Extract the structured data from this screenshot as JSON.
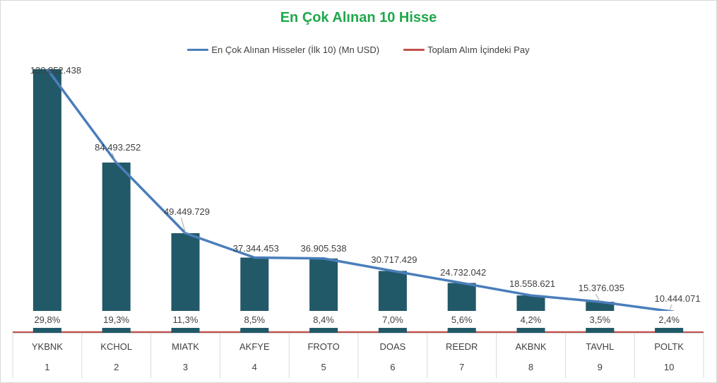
{
  "chart_data": {
    "type": "bar",
    "title": "En Çok Alınan 10 Hisse",
    "categories": [
      "YKBNK",
      "KCHOL",
      "MIATK",
      "AKFYE",
      "FROTO",
      "DOAS",
      "REEDR",
      "AKBNK",
      "TAVHL",
      "POLTK"
    ],
    "ranks": [
      "1",
      "2",
      "3",
      "4",
      "5",
      "6",
      "7",
      "8",
      "9",
      "10"
    ],
    "series": [
      {
        "name": "En Çok Alınan Hisseler (İlk 10) (Mn USD)",
        "type": "bar+line",
        "values": [
          130852438,
          84493252,
          49449729,
          37344453,
          36905538,
          30717429,
          24732042,
          18558621,
          15376035,
          10444071
        ],
        "labels": [
          "130.852.438",
          "84.493.252",
          "49.449.729",
          "37.344.453",
          "36.905.538",
          "30.717.429",
          "24.732.042",
          "18.558.621",
          "15.376.035",
          "10.444.071"
        ],
        "color": "#4a7ebb"
      },
      {
        "name": "Toplam Alım İçindeki Pay",
        "type": "bar+line",
        "values": [
          29.8,
          19.3,
          11.3,
          8.5,
          8.4,
          7.0,
          5.6,
          4.2,
          3.5,
          2.4
        ],
        "labels": [
          "29,8%",
          "19,3%",
          "11,3%",
          "8,5%",
          "8,4%",
          "7,0%",
          "5,6%",
          "4,2%",
          "3,5%",
          "2,4%"
        ],
        "color": "#c0504d"
      }
    ],
    "bar_color": "#215968",
    "ylim": [
      0,
      135000000
    ],
    "legend_position": "top",
    "grid": false
  }
}
